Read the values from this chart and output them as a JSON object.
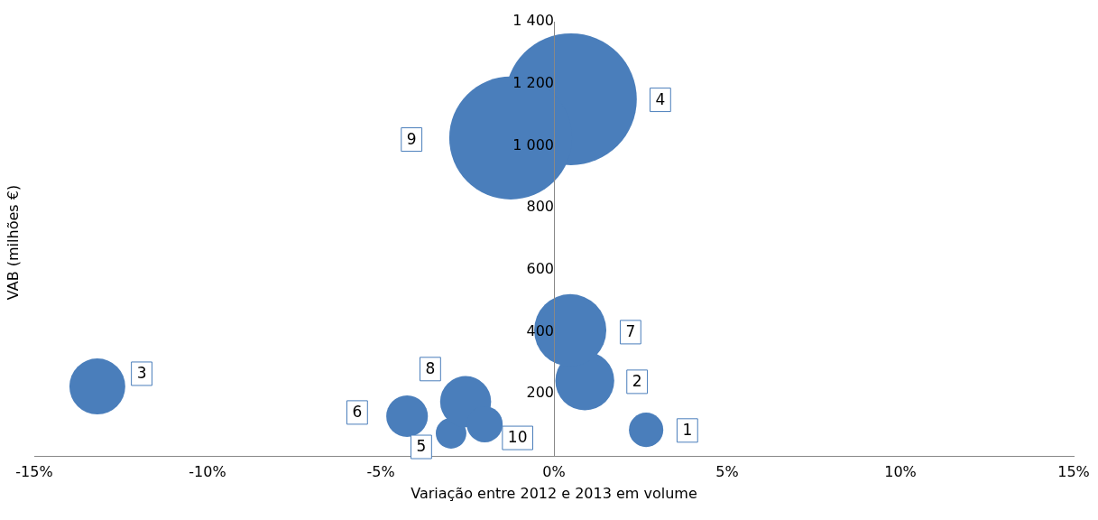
{
  "chart_data": {
    "type": "bubble",
    "xlabel": "Variação entre 2012 e 2013 em volume",
    "ylabel": "VAB (milhões €)",
    "x": [
      2.66,
      0.89,
      -13.18,
      0.49,
      -2.97,
      -4.24,
      0.47,
      -2.55,
      -1.25,
      -2.0
    ],
    "values": [
      84,
      242,
      224,
      1150,
      73,
      128,
      405,
      175,
      1025,
      102
    ],
    "sizes": [
      0.068,
      0.2,
      0.18,
      1,
      0.054,
      0.1,
      0.3,
      0.15,
      0.87,
      0.075
    ],
    "color": "#4a7ebb",
    "xlim": [
      -15,
      15
    ],
    "xticks": [
      {
        "value": -15,
        "label": "-15%"
      },
      {
        "value": -10,
        "label": "-10%"
      },
      {
        "value": -5,
        "label": "-5%"
      },
      {
        "value": 0,
        "label": "0%"
      },
      {
        "value": 5,
        "label": "5%"
      },
      {
        "value": 10,
        "label": "10%"
      },
      {
        "value": 15,
        "label": "15%"
      }
    ],
    "ylim": [
      0,
      1400
    ],
    "yticks": [
      200,
      400,
      600,
      800,
      {
        "value": 1000,
        "label": "1 000"
      },
      {
        "value": 1200,
        "label": "1 200"
      },
      {
        "value": 1400,
        "label": "1 400"
      }
    ],
    "grid": false,
    "legend": false,
    "annotations": [
      {
        "text": "1",
        "x": 3.85,
        "y": 82
      },
      {
        "text": "2",
        "x": 2.4,
        "y": 239
      },
      {
        "text": "3",
        "x": -11.9,
        "y": 265
      },
      {
        "text": "4",
        "x": 3.07,
        "y": 1148
      },
      {
        "text": "5",
        "x": -3.83,
        "y": 29
      },
      {
        "text": "6",
        "x": -5.68,
        "y": 140
      },
      {
        "text": "7",
        "x": 2.21,
        "y": 399
      },
      {
        "text": "8",
        "x": -3.57,
        "y": 280
      },
      {
        "text": "9",
        "x": -4.11,
        "y": 1020
      },
      {
        "text": "10",
        "x": -1.05,
        "y": 58
      }
    ]
  }
}
